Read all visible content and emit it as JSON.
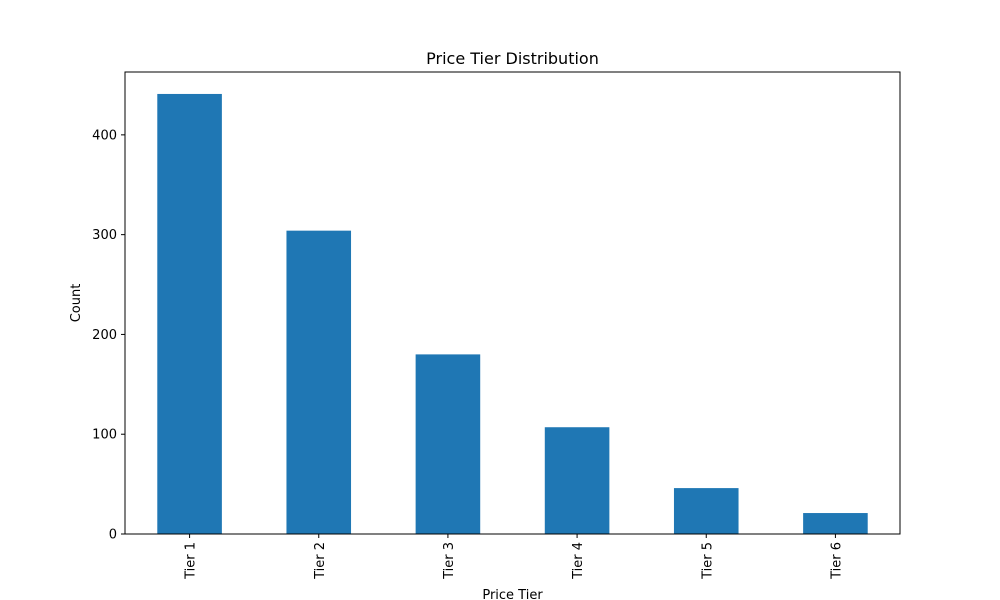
{
  "chart_data": {
    "type": "bar",
    "title": "Price Tier Distribution",
    "xlabel": "Price Tier",
    "ylabel": "Count",
    "categories": [
      "Tier 1",
      "Tier 2",
      "Tier 3",
      "Tier 4",
      "Tier 5",
      "Tier 6"
    ],
    "values": [
      441,
      304,
      180,
      107,
      46,
      21
    ],
    "ylim": [
      0,
      463
    ],
    "yticks": [
      0,
      100,
      200,
      300,
      400
    ],
    "ytick_labels": [
      "0",
      "100",
      "200",
      "300",
      "400"
    ],
    "bar_color": "#1f77b4",
    "grid": false,
    "legend": "none"
  }
}
